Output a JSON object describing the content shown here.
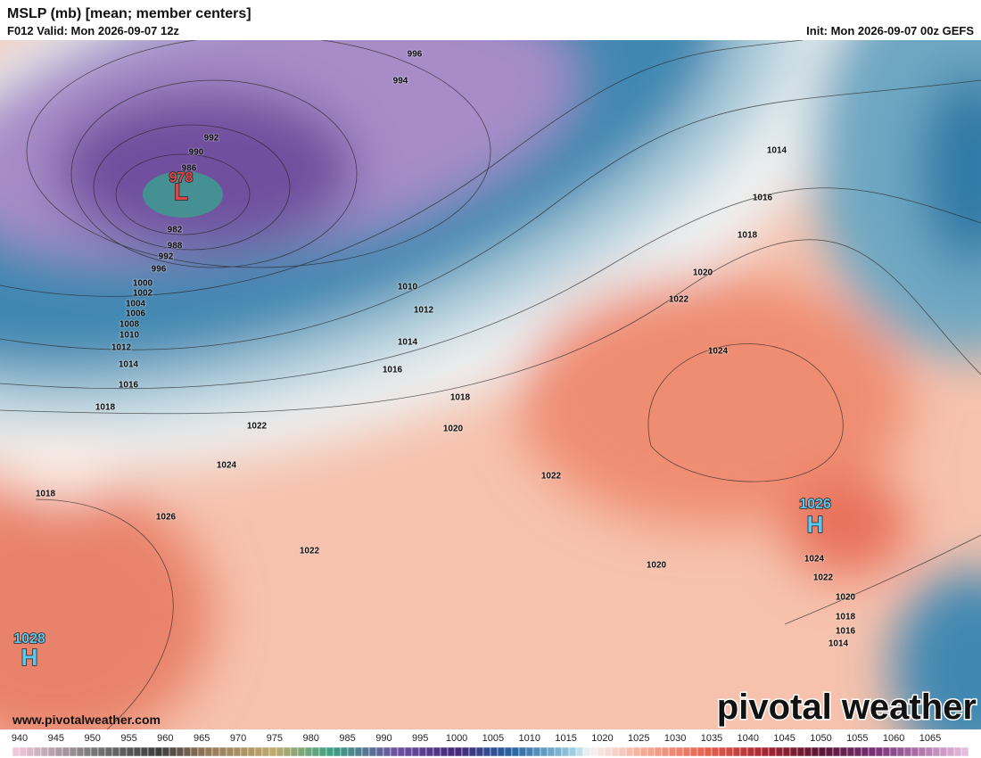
{
  "header": {
    "title": "MSLP (mb) [mean; member centers]",
    "valid": "F012 Valid: Mon 2026-09-07 12z",
    "init": "Init: Mon 2026-09-07 00z GEFS"
  },
  "contour_labels": [
    996,
    994,
    992,
    990,
    986,
    982,
    988,
    992,
    996,
    1000,
    1002,
    1004,
    1006,
    1008,
    1010,
    1012,
    1014,
    1016,
    1018,
    1022,
    1024,
    1018,
    1026,
    1022,
    1010,
    1012,
    1014,
    1016,
    1018,
    1020,
    1022,
    1020,
    1020,
    1022,
    1024,
    1014,
    1016,
    1018,
    1024,
    1022,
    1020,
    1018,
    1016,
    1014
  ],
  "centers": [
    {
      "value": "978",
      "symbol": "L"
    },
    {
      "value": "1026",
      "symbol": "H"
    },
    {
      "value": "1028",
      "symbol": "H"
    }
  ],
  "colorbar": {
    "ticks": [
      940,
      945,
      950,
      955,
      960,
      965,
      970,
      975,
      980,
      985,
      990,
      995,
      1000,
      1005,
      1010,
      1015,
      1020,
      1025,
      1030,
      1035,
      1040,
      1045,
      1050,
      1055,
      1060,
      1065
    ]
  },
  "footer": {
    "url": "www.pivotalweather.com",
    "brand": "pivotal weather"
  }
}
